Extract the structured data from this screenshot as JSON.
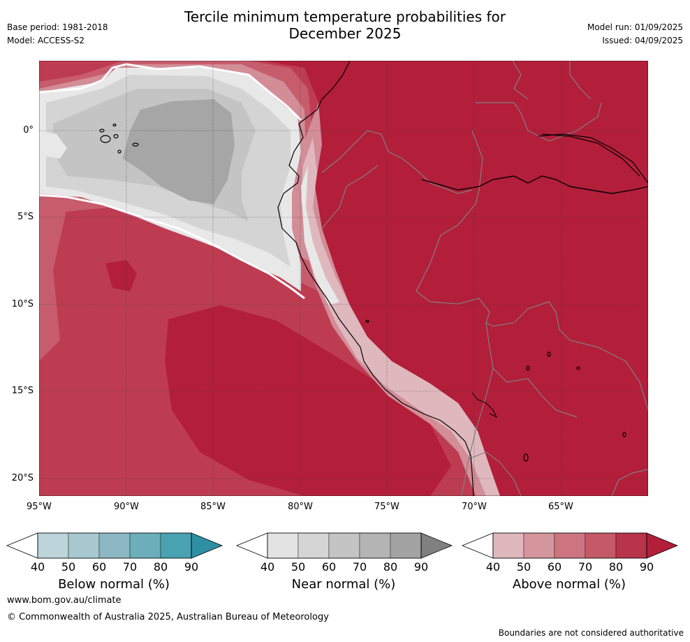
{
  "header": {
    "title_line1": "Tercile minimum temperature probabilities for",
    "title_line2": "December 2025",
    "base_period": "Base period: 1981-2018",
    "model": "Model: ACCESS-S2",
    "model_run": "Model run: 01/09/2025",
    "issued": "Issued: 04/09/2025"
  },
  "map": {
    "lon_ticks": [
      "95°W",
      "90°W",
      "85°W",
      "80°W",
      "75°W",
      "70°W",
      "65°W"
    ],
    "lat_ticks": [
      "0°",
      "5°S",
      "10°S",
      "15°S",
      "20°S"
    ],
    "colors": {
      "above_90": "#b31e3a",
      "above_80": "#bd3c52",
      "above_70": "#c75c6d",
      "above_60": "#d28d97",
      "above_50": "#dfb8bd",
      "near_40": "#e8e8e8",
      "near_50": "#d4d4d4",
      "near_60": "#c4c4c4",
      "near_70": "#a6a6a6",
      "coast": "#000000",
      "border": "#808080"
    }
  },
  "colorbars": [
    {
      "label": "Below normal (%)",
      "ticks": [
        "40",
        "50",
        "60",
        "70",
        "80",
        "90"
      ],
      "colors": [
        "#ffffff",
        "#bcd4da",
        "#a8c8cf",
        "#8cb8c3",
        "#6caeb9",
        "#48a2b0",
        "#2f8fa3"
      ]
    },
    {
      "label": "Near normal (%)",
      "ticks": [
        "40",
        "50",
        "60",
        "70",
        "80",
        "90"
      ],
      "colors": [
        "#ffffff",
        "#e3e3e3",
        "#d5d5d5",
        "#c4c4c4",
        "#b4b4b4",
        "#a3a3a3",
        "#808080"
      ]
    },
    {
      "label": "Above normal (%)",
      "ticks": [
        "40",
        "50",
        "60",
        "70",
        "80",
        "90"
      ],
      "colors": [
        "#ffffff",
        "#deb8bd",
        "#d4959c",
        "#cc7580",
        "#c45a67",
        "#b8344a",
        "#b31e3a"
      ]
    }
  ],
  "footer": {
    "website": "www.bom.gov.au/climate",
    "copyright": "© Commonwealth of Australia 2025, Australian Bureau of Meteorology",
    "disclaimer": "Boundaries are not considered authoritative"
  }
}
